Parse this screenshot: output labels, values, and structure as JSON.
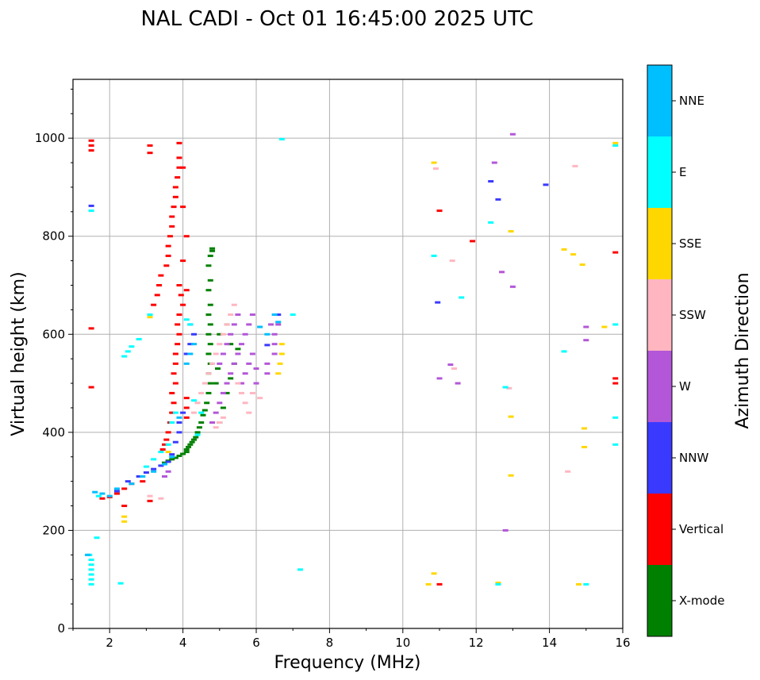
{
  "chart_data": {
    "type": "scatter",
    "title": "NAL CADI - Oct 01 16:45:00 2025 UTC",
    "xlabel": "Frequency (MHz)",
    "ylabel": "Virtual height (km)",
    "xlim": [
      1,
      16
    ],
    "ylim": [
      0,
      1120
    ],
    "xticks": [
      2,
      4,
      6,
      8,
      10,
      12,
      14,
      16
    ],
    "xtick_labels": [
      "2",
      "4",
      "6",
      "8",
      "10",
      "12",
      "14",
      "16"
    ],
    "yticks": [
      0,
      200,
      400,
      600,
      800,
      1000
    ],
    "ytick_labels": [
      "0",
      "200",
      "400",
      "600",
      "800",
      "1000"
    ],
    "grid": true,
    "colorbar": {
      "label": "Azimuth Direction",
      "categories": [
        "X-mode",
        "Vertical",
        "NNW",
        "W",
        "SSW",
        "SSE",
        "E",
        "NNE"
      ],
      "colors": [
        "#008000",
        "#ff0000",
        "#3a3aff",
        "#b357d8",
        "#ffb6c1",
        "#ffd700",
        "#00ffff",
        "#00bfff"
      ]
    },
    "series": [
      {
        "name": "X-mode",
        "points": [
          [
            4.1,
            360
          ],
          [
            4.1,
            365
          ],
          [
            4.15,
            370
          ],
          [
            4.2,
            375
          ],
          [
            4.25,
            380
          ],
          [
            4.3,
            385
          ],
          [
            4.35,
            390
          ],
          [
            4.4,
            400
          ],
          [
            4.45,
            410
          ],
          [
            4.5,
            420
          ],
          [
            4.55,
            435
          ],
          [
            4.6,
            445
          ],
          [
            4.65,
            460
          ],
          [
            4.7,
            480
          ],
          [
            4.75,
            500
          ],
          [
            4.7,
            520
          ],
          [
            4.75,
            540
          ],
          [
            4.7,
            560
          ],
          [
            4.75,
            580
          ],
          [
            4.7,
            600
          ],
          [
            4.75,
            620
          ],
          [
            4.7,
            640
          ],
          [
            4.75,
            660
          ],
          [
            4.7,
            690
          ],
          [
            4.75,
            710
          ],
          [
            4.7,
            740
          ],
          [
            4.75,
            760
          ],
          [
            4.8,
            775
          ],
          [
            4.8,
            770
          ],
          [
            3.5,
            338
          ],
          [
            3.6,
            342
          ],
          [
            3.7,
            345
          ],
          [
            3.8,
            348
          ],
          [
            3.9,
            352
          ],
          [
            4.0,
            356
          ],
          [
            5.0,
            420
          ],
          [
            5.1,
            450
          ],
          [
            5.2,
            480
          ],
          [
            5.3,
            510
          ],
          [
            5.4,
            540
          ],
          [
            5.5,
            570
          ],
          [
            5.0,
            600
          ],
          [
            5.2,
            620
          ],
          [
            5.3,
            580
          ],
          [
            4.9,
            500
          ],
          [
            4.95,
            530
          ]
        ]
      },
      {
        "name": "Vertical",
        "points": [
          [
            1.5,
            975
          ],
          [
            1.5,
            985
          ],
          [
            1.5,
            995
          ],
          [
            1.5,
            612
          ],
          [
            1.5,
            492
          ],
          [
            3.1,
            985
          ],
          [
            3.1,
            970
          ],
          [
            3.9,
            990
          ],
          [
            3.9,
            960
          ],
          [
            3.9,
            940
          ],
          [
            3.85,
            920
          ],
          [
            3.8,
            900
          ],
          [
            3.8,
            880
          ],
          [
            3.75,
            860
          ],
          [
            3.7,
            840
          ],
          [
            3.7,
            820
          ],
          [
            3.65,
            800
          ],
          [
            3.6,
            780
          ],
          [
            3.6,
            760
          ],
          [
            3.55,
            740
          ],
          [
            3.4,
            720
          ],
          [
            3.35,
            700
          ],
          [
            3.3,
            680
          ],
          [
            3.2,
            660
          ],
          [
            3.9,
            700
          ],
          [
            3.95,
            680
          ],
          [
            4.0,
            660
          ],
          [
            3.9,
            640
          ],
          [
            3.85,
            620
          ],
          [
            3.9,
            600
          ],
          [
            3.85,
            580
          ],
          [
            3.8,
            560
          ],
          [
            3.8,
            540
          ],
          [
            3.75,
            520
          ],
          [
            3.8,
            500
          ],
          [
            3.7,
            480
          ],
          [
            3.75,
            460
          ],
          [
            3.7,
            440
          ],
          [
            3.65,
            420
          ],
          [
            3.6,
            400
          ],
          [
            3.55,
            385
          ],
          [
            3.5,
            375
          ],
          [
            3.45,
            365
          ],
          [
            4.0,
            940
          ],
          [
            4.0,
            860
          ],
          [
            4.1,
            800
          ],
          [
            4.0,
            750
          ],
          [
            4.1,
            690
          ],
          [
            4.1,
            470
          ],
          [
            4.1,
            450
          ],
          [
            4.1,
            430
          ],
          [
            1.8,
            265
          ],
          [
            2.0,
            268
          ],
          [
            2.2,
            275
          ],
          [
            2.4,
            285
          ],
          [
            2.6,
            295
          ],
          [
            2.9,
            300
          ],
          [
            3.1,
            260
          ],
          [
            2.4,
            250
          ],
          [
            11.0,
            90
          ],
          [
            11.0,
            852
          ],
          [
            11.9,
            790
          ],
          [
            15.8,
            767
          ],
          [
            15.8,
            510
          ],
          [
            15.8,
            500
          ]
        ]
      },
      {
        "name": "NNW",
        "points": [
          [
            1.5,
            862
          ],
          [
            3.0,
            318
          ],
          [
            3.2,
            325
          ],
          [
            3.4,
            332
          ],
          [
            3.6,
            340
          ],
          [
            3.7,
            355
          ],
          [
            3.8,
            380
          ],
          [
            3.9,
            400
          ],
          [
            3.9,
            420
          ],
          [
            4.0,
            440
          ],
          [
            4.1,
            560
          ],
          [
            4.2,
            580
          ],
          [
            4.3,
            600
          ],
          [
            4.2,
            620
          ],
          [
            2.2,
            280
          ],
          [
            2.5,
            300
          ],
          [
            2.8,
            310
          ],
          [
            6.3,
            578
          ],
          [
            6.6,
            640
          ],
          [
            10.95,
            665
          ],
          [
            12.4,
            912
          ],
          [
            12.6,
            875
          ],
          [
            13.9,
            905
          ]
        ]
      },
      {
        "name": "W",
        "points": [
          [
            4.8,
            420
          ],
          [
            4.9,
            440
          ],
          [
            5.0,
            460
          ],
          [
            5.1,
            480
          ],
          [
            5.2,
            500
          ],
          [
            5.3,
            520
          ],
          [
            5.4,
            540
          ],
          [
            5.5,
            560
          ],
          [
            5.6,
            580
          ],
          [
            5.7,
            600
          ],
          [
            5.8,
            620
          ],
          [
            5.9,
            640
          ],
          [
            5.0,
            540
          ],
          [
            5.1,
            560
          ],
          [
            5.2,
            580
          ],
          [
            5.3,
            600
          ],
          [
            5.4,
            620
          ],
          [
            5.5,
            640
          ],
          [
            5.6,
            500
          ],
          [
            5.7,
            520
          ],
          [
            5.8,
            540
          ],
          [
            5.9,
            560
          ],
          [
            6.0,
            530
          ],
          [
            6.0,
            500
          ],
          [
            6.3,
            520
          ],
          [
            6.3,
            540
          ],
          [
            6.5,
            560
          ],
          [
            6.5,
            580
          ],
          [
            6.5,
            600
          ],
          [
            6.6,
            620
          ],
          [
            6.4,
            620
          ],
          [
            3.5,
            310
          ],
          [
            3.6,
            320
          ],
          [
            11.0,
            510
          ],
          [
            11.3,
            538
          ],
          [
            11.5,
            500
          ],
          [
            12.7,
            727
          ],
          [
            13.0,
            697
          ],
          [
            13.0,
            1008
          ],
          [
            12.8,
            200
          ],
          [
            15.0,
            615
          ],
          [
            15.0,
            588
          ],
          [
            12.5,
            950
          ]
        ]
      },
      {
        "name": "SSW",
        "points": [
          [
            4.3,
            440
          ],
          [
            4.4,
            460
          ],
          [
            4.5,
            480
          ],
          [
            4.6,
            500
          ],
          [
            4.7,
            520
          ],
          [
            4.8,
            540
          ],
          [
            4.9,
            560
          ],
          [
            5.0,
            580
          ],
          [
            5.1,
            600
          ],
          [
            5.2,
            620
          ],
          [
            5.3,
            640
          ],
          [
            5.4,
            660
          ],
          [
            5.5,
            500
          ],
          [
            5.6,
            480
          ],
          [
            5.7,
            460
          ],
          [
            5.8,
            440
          ],
          [
            5.9,
            480
          ],
          [
            6.1,
            470
          ],
          [
            4.9,
            410
          ],
          [
            5.0,
            420
          ],
          [
            5.1,
            430
          ],
          [
            3.1,
            270
          ],
          [
            3.4,
            265
          ],
          [
            10.9,
            938
          ],
          [
            11.35,
            750
          ],
          [
            11.4,
            530
          ],
          [
            14.5,
            320
          ],
          [
            14.7,
            943
          ],
          [
            12.9,
            490
          ]
        ]
      },
      {
        "name": "SSE",
        "points": [
          [
            2.4,
            218
          ],
          [
            2.4,
            228
          ],
          [
            3.1,
            635
          ],
          [
            3.6,
            360
          ],
          [
            6.6,
            520
          ],
          [
            6.65,
            540
          ],
          [
            6.7,
            560
          ],
          [
            6.7,
            580
          ],
          [
            10.7,
            90
          ],
          [
            10.85,
            112
          ],
          [
            10.85,
            950
          ],
          [
            12.6,
            93
          ],
          [
            12.95,
            432
          ],
          [
            12.95,
            312
          ],
          [
            12.95,
            810
          ],
          [
            14.4,
            773
          ],
          [
            14.65,
            763
          ],
          [
            14.9,
            742
          ],
          [
            14.95,
            408
          ],
          [
            14.95,
            370
          ],
          [
            14.8,
            90
          ],
          [
            15.5,
            615
          ],
          [
            15.8,
            990
          ]
        ]
      },
      {
        "name": "E",
        "points": [
          [
            1.5,
            852
          ],
          [
            1.45,
            150
          ],
          [
            1.5,
            140
          ],
          [
            1.5,
            130
          ],
          [
            1.5,
            120
          ],
          [
            1.5,
            110
          ],
          [
            1.5,
            100
          ],
          [
            1.5,
            90
          ],
          [
            1.65,
            185
          ],
          [
            1.7,
            270
          ],
          [
            2.3,
            92
          ],
          [
            2.4,
            555
          ],
          [
            2.5,
            565
          ],
          [
            2.6,
            575
          ],
          [
            2.8,
            590
          ],
          [
            3.1,
            640
          ],
          [
            3.0,
            330
          ],
          [
            3.2,
            345
          ],
          [
            3.4,
            360
          ],
          [
            3.6,
            375
          ],
          [
            3.7,
            420
          ],
          [
            3.8,
            440
          ],
          [
            4.3,
            465
          ],
          [
            4.5,
            440
          ],
          [
            4.1,
            630
          ],
          [
            4.2,
            620
          ],
          [
            4.4,
            395
          ],
          [
            6.7,
            998
          ],
          [
            7.0,
            640
          ],
          [
            7.2,
            120
          ],
          [
            10.85,
            760
          ],
          [
            11.6,
            675
          ],
          [
            12.4,
            828
          ],
          [
            12.6,
            90
          ],
          [
            12.8,
            492
          ],
          [
            14.4,
            565
          ],
          [
            15.0,
            90
          ],
          [
            15.8,
            620
          ],
          [
            15.8,
            430
          ],
          [
            15.8,
            375
          ],
          [
            15.8,
            985
          ]
        ]
      },
      {
        "name": "NNE",
        "points": [
          [
            1.4,
            150
          ],
          [
            1.6,
            278
          ],
          [
            1.8,
            275
          ],
          [
            2.0,
            270
          ],
          [
            2.2,
            285
          ],
          [
            2.6,
            295
          ],
          [
            2.9,
            310
          ],
          [
            3.2,
            320
          ],
          [
            3.5,
            335
          ],
          [
            3.7,
            350
          ],
          [
            3.9,
            430
          ],
          [
            4.1,
            540
          ],
          [
            4.2,
            560
          ],
          [
            4.3,
            580
          ],
          [
            6.1,
            615
          ],
          [
            6.3,
            600
          ],
          [
            6.6,
            625
          ],
          [
            6.5,
            640
          ]
        ]
      }
    ]
  }
}
